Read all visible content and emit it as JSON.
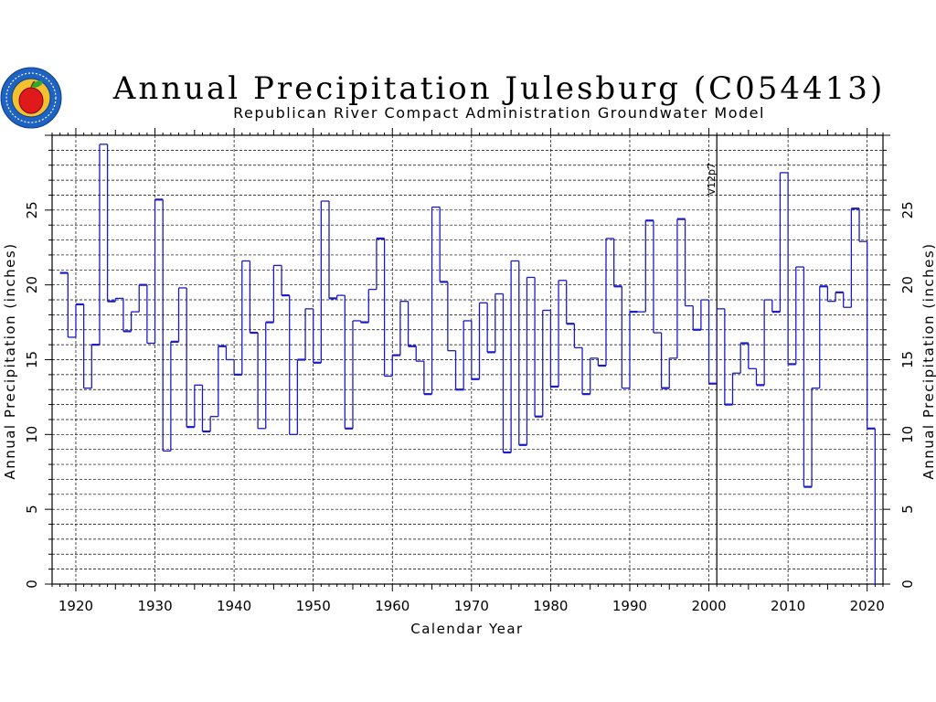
{
  "header": {
    "title": "Annual Precipitation Julesburg (C054413)",
    "subtitle": "Republican River Compact Administration Groundwater Model",
    "logo_icon": "apple-seal-logo-icon"
  },
  "colors": {
    "series_line": "#1a1acc",
    "axes": "#000000",
    "grid": "#000000",
    "logo_ring": "#1f63c2",
    "logo_gold": "#f2c12e",
    "logo_apple": "#e01a1a",
    "logo_leaf": "#2fa82f"
  },
  "chart_data": {
    "type": "line",
    "step": true,
    "title": "Annual Precipitation Julesburg (C054413)",
    "subtitle": "Republican River Compact Administration Groundwater Model",
    "xlabel": "Calendar Year",
    "ylabel": "Annual Precipitation (inches)",
    "xlim": [
      1917,
      2022
    ],
    "ylim": [
      0,
      30
    ],
    "xticks": [
      1920,
      1930,
      1940,
      1950,
      1960,
      1970,
      1980,
      1990,
      2000,
      2010,
      2020
    ],
    "yticks": [
      0,
      5,
      10,
      15,
      20,
      25
    ],
    "grid": true,
    "annotation": {
      "x": 2001,
      "label": "V12p7"
    },
    "x": [
      1918,
      1919,
      1920,
      1921,
      1922,
      1923,
      1924,
      1925,
      1926,
      1927,
      1928,
      1929,
      1930,
      1931,
      1932,
      1933,
      1934,
      1935,
      1936,
      1937,
      1938,
      1939,
      1940,
      1941,
      1942,
      1943,
      1944,
      1945,
      1946,
      1947,
      1948,
      1949,
      1950,
      1951,
      1952,
      1953,
      1954,
      1955,
      1956,
      1957,
      1958,
      1959,
      1960,
      1961,
      1962,
      1963,
      1964,
      1965,
      1966,
      1967,
      1968,
      1969,
      1970,
      1971,
      1972,
      1973,
      1974,
      1975,
      1976,
      1977,
      1978,
      1979,
      1980,
      1981,
      1982,
      1983,
      1984,
      1985,
      1986,
      1987,
      1988,
      1989,
      1990,
      1991,
      1992,
      1993,
      1994,
      1995,
      1996,
      1997,
      1998,
      1999,
      2000,
      2001,
      2002,
      2003,
      2004,
      2005,
      2006,
      2007,
      2008,
      2009,
      2010,
      2011,
      2012,
      2013,
      2014,
      2015,
      2016,
      2017,
      2018,
      2019,
      2020
    ],
    "values": [
      20.8,
      16.5,
      18.7,
      13.1,
      16.0,
      29.4,
      18.9,
      19.1,
      16.9,
      18.2,
      20.0,
      16.1,
      25.7,
      8.9,
      16.2,
      19.8,
      10.5,
      13.3,
      10.2,
      11.2,
      15.9,
      15.0,
      14.0,
      21.6,
      16.8,
      10.4,
      17.5,
      21.3,
      19.3,
      10.0,
      15.0,
      18.4,
      14.8,
      25.6,
      19.1,
      19.3,
      10.4,
      17.6,
      17.5,
      19.7,
      23.1,
      13.9,
      15.3,
      18.9,
      15.9,
      14.9,
      12.7,
      25.2,
      20.2,
      15.6,
      13.0,
      17.6,
      13.7,
      18.8,
      15.5,
      19.4,
      8.8,
      21.6,
      9.3,
      20.5,
      11.2,
      18.3,
      13.2,
      20.3,
      17.4,
      15.8,
      12.7,
      15.1,
      14.6,
      23.1,
      19.9,
      13.1,
      18.2,
      18.2,
      24.3,
      16.8,
      13.1,
      15.1,
      24.4,
      18.6,
      17.0,
      19.0,
      13.4,
      18.4,
      12.0,
      14.1,
      16.1,
      14.4,
      13.3,
      19.0,
      18.2,
      27.5,
      14.7,
      21.2,
      6.5,
      13.1,
      19.9,
      18.9,
      19.5,
      18.5,
      25.1,
      22.9,
      10.4
    ]
  }
}
